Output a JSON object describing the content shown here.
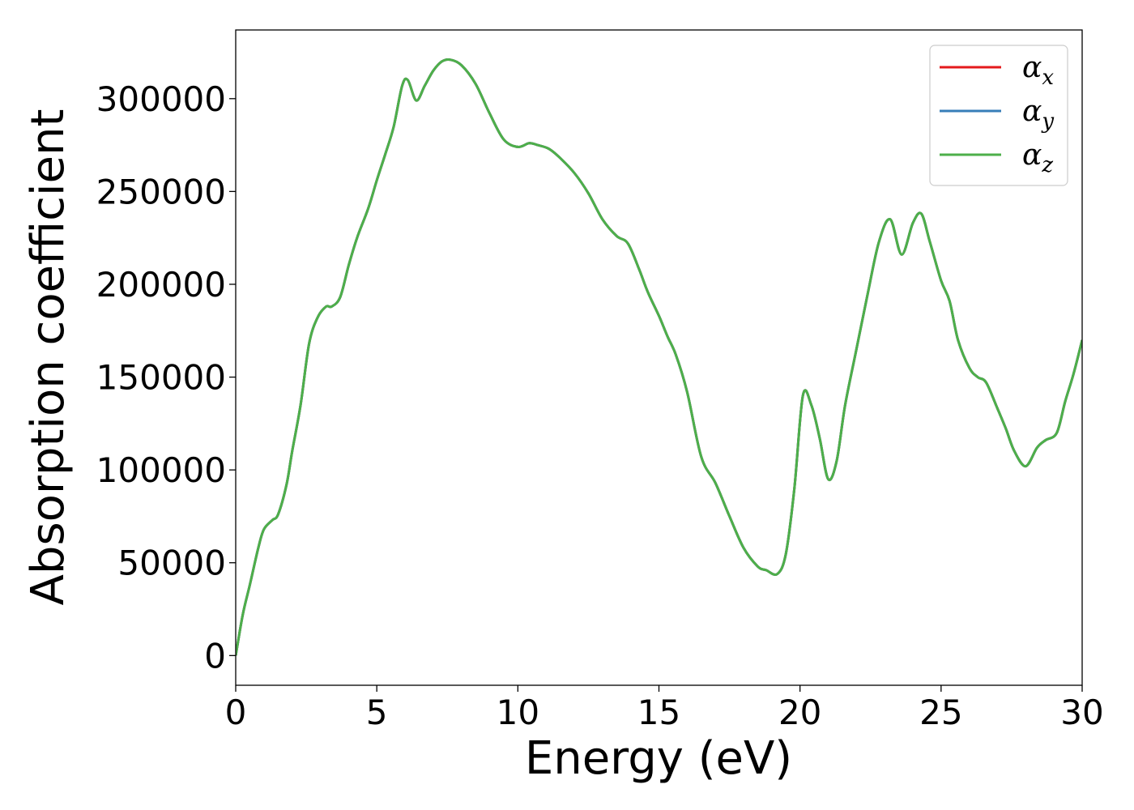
{
  "chart_data": {
    "type": "line",
    "title": "",
    "xlabel": "Energy (eV)",
    "ylabel": "Absorption coefficient",
    "xlim": [
      0,
      30
    ],
    "ylim": [
      -16000,
      337000
    ],
    "x_ticks": [
      0,
      5,
      10,
      15,
      20,
      25,
      30
    ],
    "x_tick_labels": [
      "0",
      "5",
      "10",
      "15",
      "20",
      "25",
      "30"
    ],
    "y_ticks": [
      0,
      50000,
      100000,
      150000,
      200000,
      250000,
      300000
    ],
    "y_tick_labels": [
      "0",
      "50000",
      "100000",
      "150000",
      "200000",
      "250000",
      "300000"
    ],
    "grid": false,
    "legend_position": "top-right",
    "legend": [
      {
        "symbol": "α",
        "subscript": "x",
        "color": "#e41a1c"
      },
      {
        "symbol": "α",
        "subscript": "y",
        "color": "#377eb8"
      },
      {
        "symbol": "α",
        "subscript": "z",
        "color": "#4daf4a"
      }
    ],
    "x": [
      0,
      0.25,
      0.5,
      0.8,
      1.0,
      1.3,
      1.5,
      1.8,
      2.0,
      2.3,
      2.6,
      2.9,
      3.2,
      3.4,
      3.7,
      4.0,
      4.3,
      4.7,
      5.0,
      5.3,
      5.6,
      5.9,
      6.1,
      6.4,
      6.7,
      7.0,
      7.3,
      7.6,
      8.0,
      8.5,
      9.0,
      9.5,
      10.0,
      10.4,
      10.7,
      11.1,
      11.5,
      12.0,
      12.5,
      13.0,
      13.5,
      13.9,
      14.3,
      14.6,
      15.0,
      15.3,
      15.6,
      16.0,
      16.5,
      17.0,
      17.5,
      18.0,
      18.5,
      18.8,
      19.2,
      19.5,
      19.8,
      20.1,
      20.4,
      20.7,
      21.0,
      21.3,
      21.6,
      22.0,
      22.4,
      22.8,
      23.2,
      23.6,
      24.0,
      24.3,
      24.6,
      25.0,
      25.3,
      25.6,
      26.0,
      26.3,
      26.6,
      27.0,
      27.3,
      27.6,
      28.0,
      28.4,
      28.7,
      29.1,
      29.4,
      29.7,
      30.0
    ],
    "series": [
      {
        "name": "α_x",
        "color": "#e41a1c",
        "y": [
          0,
          22000,
          38000,
          58000,
          68000,
          73000,
          76000,
          92000,
          110000,
          135000,
          168000,
          182000,
          188000,
          188000,
          193000,
          210000,
          225000,
          241000,
          256000,
          270000,
          285000,
          307000,
          310000,
          299000,
          307000,
          315000,
          320000,
          321000,
          318000,
          308000,
          292000,
          278000,
          274000,
          276000,
          275000,
          273000,
          268000,
          260000,
          249000,
          235000,
          226000,
          222000,
          208000,
          196000,
          183000,
          172000,
          162000,
          142000,
          107000,
          93000,
          75000,
          58000,
          48000,
          46000,
          44000,
          55000,
          90000,
          140000,
          135000,
          117000,
          95000,
          105000,
          135000,
          165000,
          195000,
          223000,
          235000,
          216000,
          233000,
          238000,
          223000,
          202000,
          191000,
          170000,
          155000,
          150000,
          147000,
          133000,
          122000,
          110000,
          102000,
          112000,
          116000,
          120000,
          137000,
          152000,
          170000
        ]
      },
      {
        "name": "α_y",
        "color": "#377eb8",
        "y": [
          0,
          22000,
          38000,
          58000,
          68000,
          73000,
          76000,
          92000,
          110000,
          135000,
          168000,
          182000,
          188000,
          188000,
          193000,
          210000,
          225000,
          241000,
          256000,
          270000,
          285000,
          307000,
          310000,
          299000,
          307000,
          315000,
          320000,
          321000,
          318000,
          308000,
          292000,
          278000,
          274000,
          276000,
          275000,
          273000,
          268000,
          260000,
          249000,
          235000,
          226000,
          222000,
          208000,
          196000,
          183000,
          172000,
          162000,
          142000,
          107000,
          93000,
          75000,
          58000,
          48000,
          46000,
          44000,
          55000,
          90000,
          140000,
          135000,
          117000,
          95000,
          105000,
          135000,
          165000,
          195000,
          223000,
          235000,
          216000,
          233000,
          238000,
          223000,
          202000,
          191000,
          170000,
          155000,
          150000,
          147000,
          133000,
          122000,
          110000,
          102000,
          112000,
          116000,
          120000,
          137000,
          152000,
          170000
        ]
      },
      {
        "name": "α_z",
        "color": "#4daf4a",
        "y": [
          0,
          22000,
          38000,
          58000,
          68000,
          73000,
          76000,
          92000,
          110000,
          135000,
          168000,
          182000,
          188000,
          188000,
          193000,
          210000,
          225000,
          241000,
          256000,
          270000,
          285000,
          307000,
          310000,
          299000,
          307000,
          315000,
          320000,
          321000,
          318000,
          308000,
          292000,
          278000,
          274000,
          276000,
          275000,
          273000,
          268000,
          260000,
          249000,
          235000,
          226000,
          222000,
          208000,
          196000,
          183000,
          172000,
          162000,
          142000,
          107000,
          93000,
          75000,
          58000,
          48000,
          46000,
          44000,
          55000,
          90000,
          140000,
          135000,
          117000,
          95000,
          105000,
          135000,
          165000,
          195000,
          223000,
          235000,
          216000,
          233000,
          238000,
          223000,
          202000,
          191000,
          170000,
          155000,
          150000,
          147000,
          133000,
          122000,
          110000,
          102000,
          112000,
          116000,
          120000,
          137000,
          152000,
          170000
        ]
      }
    ]
  }
}
